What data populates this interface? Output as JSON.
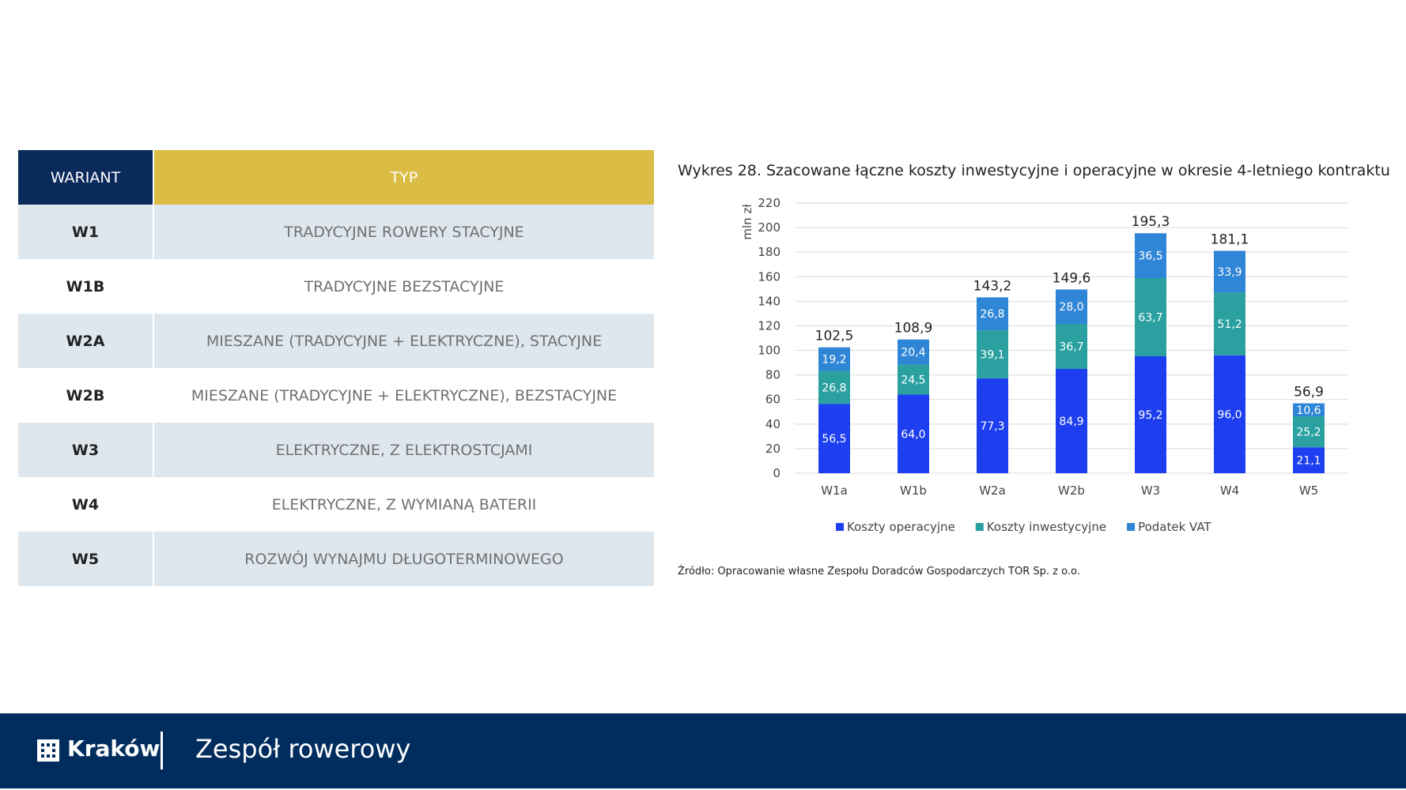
{
  "table": {
    "header": {
      "variant": "WARIANT",
      "type": "TYP"
    },
    "rows": [
      {
        "variant": "W1",
        "type": "TRADYCYJNE ROWERY STACYJNE"
      },
      {
        "variant": "W1B",
        "type": "TRADYCYJNE BEZSTACYJNE"
      },
      {
        "variant": "W2A",
        "type": "MIESZANE (TRADYCYJNE + ELEKTRYCZNE), STACYJNE"
      },
      {
        "variant": "W2B",
        "type": "MIESZANE (TRADYCYJNE + ELEKTRYCZNE), BEZSTACYJNE"
      },
      {
        "variant": "W3",
        "type": "ELEKTRYCZNE, Z ELEKTROSTCJAMI"
      },
      {
        "variant": "W4",
        "type": "ELEKTRYCZNE, Z WYMIANĄ BATERII"
      },
      {
        "variant": "W5",
        "type": "ROZWÓJ WYNAJMU DŁUGOTERMINOWEGO"
      }
    ]
  },
  "chart_data": {
    "type": "bar",
    "stacked": true,
    "title": "Wykres 28. Szacowane łączne koszty inwestycyjne i operacyjne w okresie 4-letniego kontraktu",
    "ylabel": "mln zł",
    "ylim": [
      0,
      220
    ],
    "yticks": [
      0,
      20,
      40,
      60,
      80,
      100,
      120,
      140,
      160,
      180,
      200,
      220
    ],
    "categories": [
      "W1a",
      "W1b",
      "W2a",
      "W2b",
      "W3",
      "W4",
      "W5"
    ],
    "series": [
      {
        "name": "Koszty operacyjne",
        "color": "#1e3ff0",
        "values": [
          56.5,
          64.0,
          77.3,
          84.9,
          95.2,
          96.0,
          21.1
        ],
        "labels": [
          "56,5",
          "64,0",
          "77,3",
          "84,9",
          "95,2",
          "96,0",
          "21,1"
        ]
      },
      {
        "name": "Koszty inwestycyjne",
        "color": "#2aa1a0",
        "values": [
          26.8,
          24.5,
          39.1,
          36.7,
          63.7,
          51.2,
          25.2
        ],
        "labels": [
          "26,8",
          "24,5",
          "39,1",
          "36,7",
          "63,7",
          "51,2",
          "25,2"
        ]
      },
      {
        "name": "Podatek VAT",
        "color": "#2f86d6",
        "values": [
          19.2,
          20.4,
          26.8,
          28.0,
          36.5,
          33.9,
          10.6
        ],
        "labels": [
          "19,2",
          "20,4",
          "26,8",
          "28,0",
          "36,5",
          "33,9",
          "10,6"
        ]
      }
    ],
    "totals": [
      "102,5",
      "108,9",
      "143,2",
      "149,6",
      "195,3",
      "181,1",
      "56,9"
    ],
    "legend_position": "bottom",
    "grid": true,
    "source": "Źródło: Opracowanie własne Zespołu Doradców Gospodarczych TOR Sp. z o.o."
  },
  "footer": {
    "logo_icon": "krakow-logo-icon",
    "city": "Kraków",
    "team": "Zespół rowerowy"
  }
}
